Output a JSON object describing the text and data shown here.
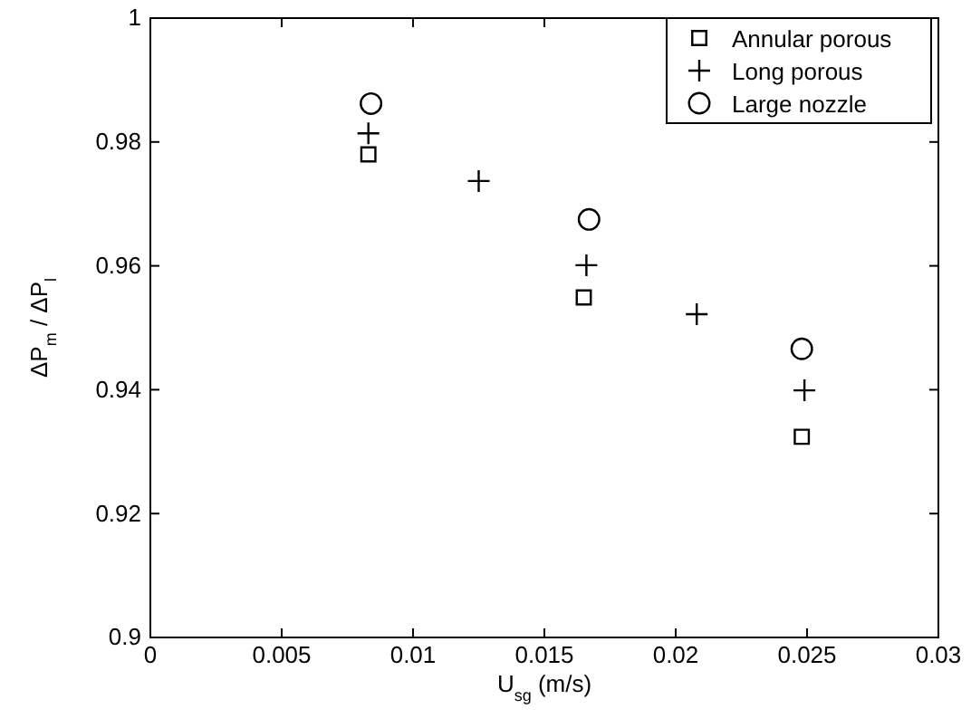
{
  "chart_data": {
    "type": "scatter",
    "xlabel": "U$_{sg}$ (m/s)",
    "ylabel": "ΔP$_{m}$ / ΔP$_{l}$",
    "xlim": [
      0,
      0.03
    ],
    "ylim": [
      0.9,
      1
    ],
    "xticks": [
      0,
      0.005,
      0.01,
      0.015,
      0.02,
      0.025,
      0.03
    ],
    "yticks": [
      0.9,
      0.92,
      0.94,
      0.96,
      0.98,
      1
    ],
    "grid": false,
    "legend": "top right",
    "series": [
      {
        "name": "Annular porous",
        "color": "#000000",
        "marker": "square",
        "x": [
          0.0083,
          0.0165,
          0.0248
        ],
        "values": [
          0.978,
          0.9549,
          0.9324
        ]
      },
      {
        "name": "Long porous",
        "color": "#000000",
        "marker": "cross",
        "x": [
          0.0083,
          0.0125,
          0.0166,
          0.0208,
          0.0249
        ],
        "values": [
          0.9814,
          0.9737,
          0.9601,
          0.9522,
          0.9399
        ]
      },
      {
        "name": "Large nozzle",
        "color": "#000000",
        "marker": "circle",
        "x": [
          0.0084,
          0.0167,
          0.0248
        ],
        "values": [
          0.9862,
          0.9675,
          0.9466
        ]
      }
    ]
  }
}
